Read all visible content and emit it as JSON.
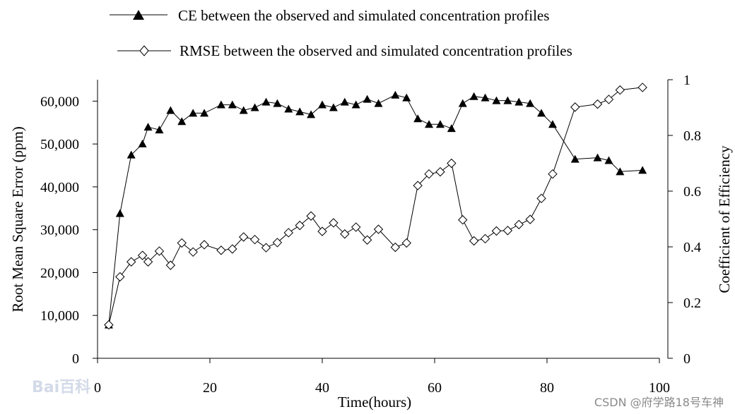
{
  "chart_data": {
    "type": "line",
    "title": "",
    "xlabel": "Time(hours)",
    "ylabel_left": "Root Mean Square Error (ppm)",
    "ylabel_right": "Coefficient of Efficiency",
    "xlim": [
      0,
      100
    ],
    "ylim_left": [
      0,
      65000
    ],
    "ylim_right": [
      0,
      1
    ],
    "x_ticks": [
      0,
      20,
      40,
      60,
      80,
      100
    ],
    "x_tick_labels": [
      "0",
      "20",
      "40",
      "60",
      "80",
      "100"
    ],
    "y_left_ticks": [
      0,
      10000,
      20000,
      30000,
      40000,
      50000,
      60000
    ],
    "y_left_tick_labels": [
      "0",
      "10,000",
      "20,000",
      "30,000",
      "40,000",
      "50,000",
      "60,000"
    ],
    "y_right_ticks": [
      0,
      0.2,
      0.4,
      0.6,
      0.8,
      1
    ],
    "y_right_tick_labels": [
      "0",
      "0.2",
      "0.4",
      "0.6",
      "0.8",
      "1"
    ],
    "grid": false,
    "legend_position": "top",
    "series": [
      {
        "name": "CE between the observed and simulated concentration profiles",
        "axis": "right",
        "marker": "filled-triangle",
        "x": [
          2,
          4,
          6,
          8,
          9,
          11,
          13,
          15,
          17,
          19,
          22,
          24,
          26,
          28,
          30,
          32,
          34,
          36,
          38,
          40,
          42,
          44,
          46,
          48,
          50,
          53,
          55,
          57,
          59,
          61,
          63,
          65,
          67,
          69,
          71,
          73,
          75,
          77,
          79,
          81,
          85,
          89,
          91,
          93,
          97
        ],
        "values": [
          0.12,
          0.52,
          0.73,
          0.77,
          0.83,
          0.82,
          0.89,
          0.85,
          0.88,
          0.88,
          0.91,
          0.91,
          0.89,
          0.9,
          0.92,
          0.915,
          0.895,
          0.885,
          0.875,
          0.91,
          0.9,
          0.92,
          0.91,
          0.93,
          0.915,
          0.945,
          0.935,
          0.86,
          0.84,
          0.84,
          0.825,
          0.915,
          0.94,
          0.935,
          0.925,
          0.925,
          0.92,
          0.915,
          0.88,
          0.84,
          0.715,
          0.72,
          0.71,
          0.67,
          0.675
        ]
      },
      {
        "name": "RMSE between the observed and simulated concentration profiles",
        "axis": "left",
        "marker": "open-diamond",
        "x": [
          2,
          4,
          6,
          8,
          9,
          11,
          13,
          15,
          17,
          19,
          22,
          24,
          26,
          28,
          30,
          32,
          34,
          36,
          38,
          40,
          42,
          44,
          46,
          48,
          50,
          53,
          55,
          57,
          59,
          61,
          63,
          65,
          67,
          69,
          71,
          73,
          75,
          77,
          79,
          81,
          85,
          89,
          91,
          93,
          97
        ],
        "values": [
          7800,
          19000,
          22500,
          24000,
          22500,
          25000,
          21700,
          26900,
          24800,
          26500,
          25200,
          25500,
          28300,
          27700,
          25800,
          27000,
          29300,
          31000,
          33200,
          29600,
          31600,
          29000,
          30600,
          27600,
          30100,
          25900,
          26900,
          40300,
          43000,
          43500,
          45500,
          32300,
          27400,
          27900,
          29700,
          29800,
          31200,
          32400,
          37300,
          43000,
          58600,
          59300,
          60400,
          62600,
          63200
        ]
      }
    ]
  },
  "watermarks": {
    "baidu": "Bai百科",
    "csdn": "CSDN @府学路18号车神"
  }
}
